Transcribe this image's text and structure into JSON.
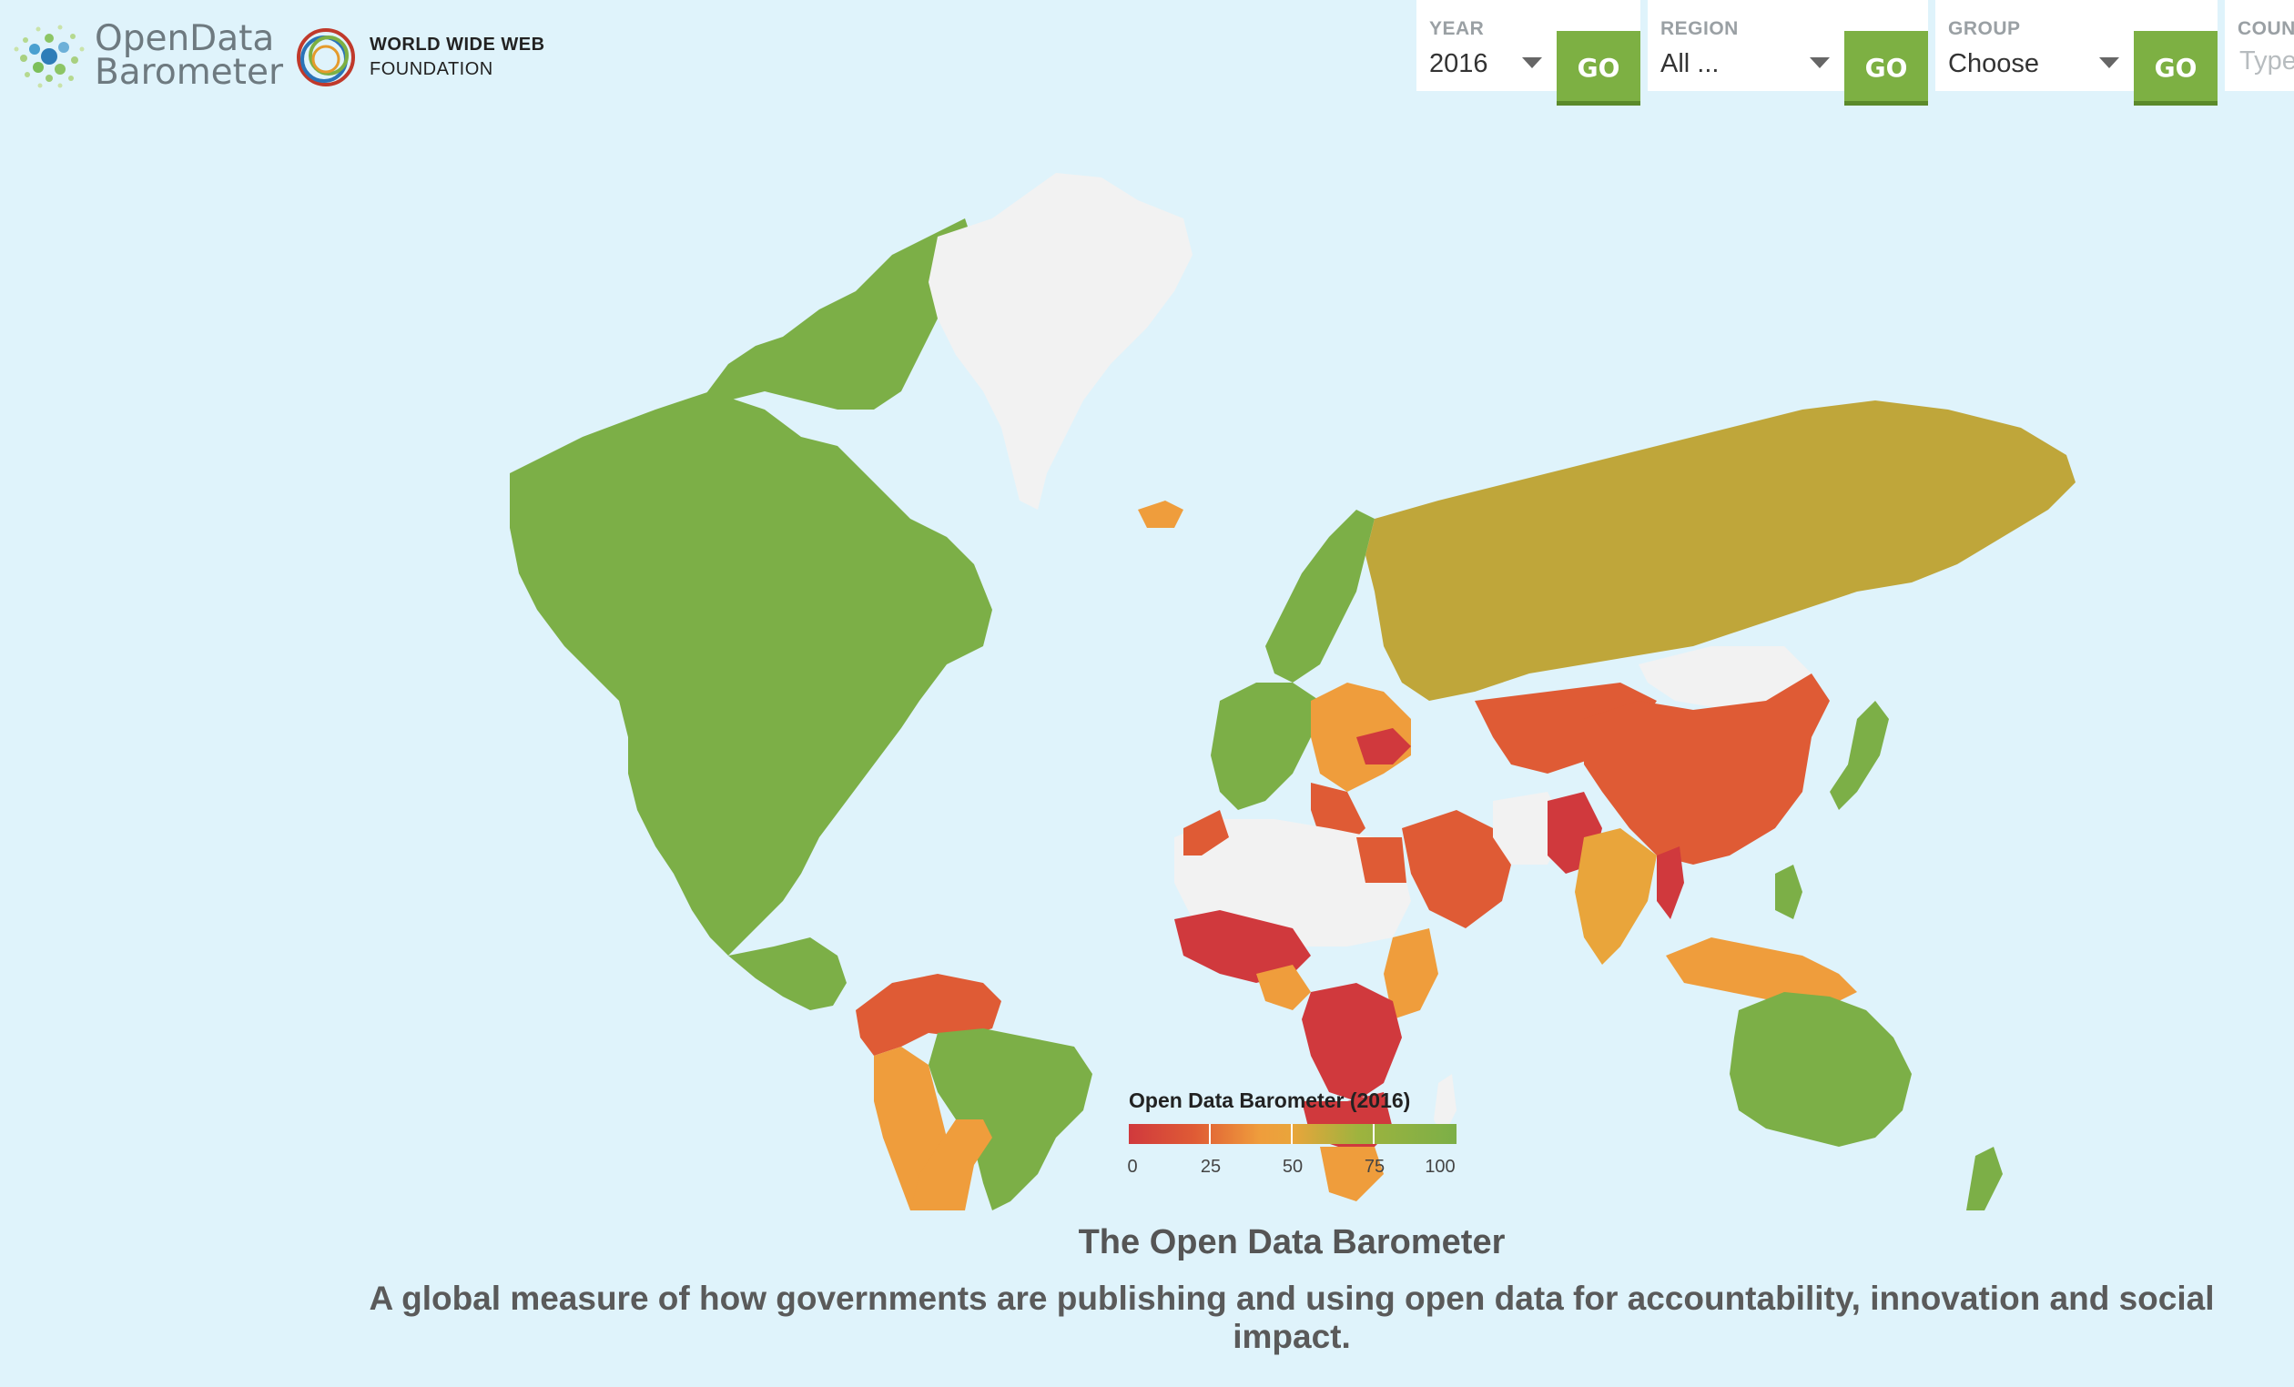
{
  "header": {
    "odb_logo": {
      "line1": "OpenData",
      "line2": "Barometer"
    },
    "www_logo": {
      "line1": "WORLD WIDE WEB",
      "line2": "FOUNDATION"
    }
  },
  "filters": {
    "year": {
      "label": "YEAR",
      "value": "2016",
      "go": "GO"
    },
    "region": {
      "label": "REGION",
      "value": "All ...",
      "go": "GO"
    },
    "group": {
      "label": "GROUP",
      "value": "Choose",
      "go": "GO"
    },
    "country": {
      "label": "COUN",
      "placeholder": "Type"
    }
  },
  "legend": {
    "title": "Open Data Barometer (2016)",
    "ticks": [
      "0",
      "25",
      "50",
      "75",
      "100"
    ]
  },
  "colors": {
    "score_0": "#d0393d",
    "score_25": "#df5b35",
    "score_50": "#ef9d3c",
    "score_75": "#9eb33e",
    "score_100": "#7caf47",
    "no_data": "#f2f2f2",
    "ocean": "#dff3fb",
    "go_button": "#7db043"
  },
  "main": {
    "title": "The Open Data Barometer",
    "subtitle": "A global measure of how governments are publishing and using open data for accountability, innovation and social impact."
  }
}
